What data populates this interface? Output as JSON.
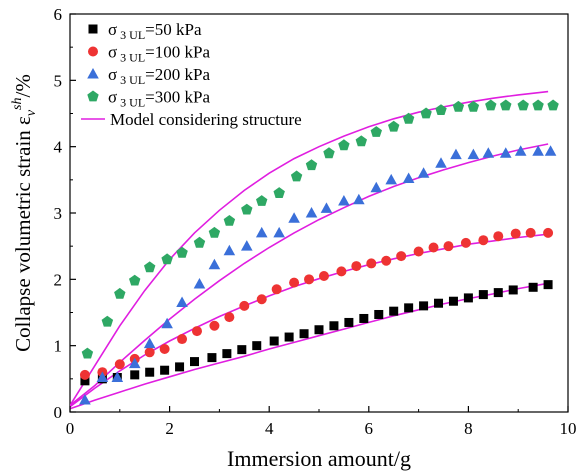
{
  "chart_data": {
    "type": "scatter",
    "title": "",
    "xlabel": "Immersion amount/g",
    "ylabel_main": "Collapse volumetric strain ε",
    "ylabel_sub": "v",
    "ylabel_sup": "sh",
    "ylabel_unit": "/%",
    "xlim": [
      0,
      10
    ],
    "ylim": [
      0,
      6
    ],
    "x_ticks": [
      "0",
      "2",
      "4",
      "6",
      "8",
      "10"
    ],
    "y_ticks": [
      "0",
      "1",
      "2",
      "3",
      "4",
      "5",
      "6"
    ],
    "grid": false,
    "legend_position": "top-left",
    "series": [
      {
        "legend": {
          "sym": "σ",
          "sub": "3 UL",
          "rest": "=50 kPa"
        },
        "marker": "square",
        "color": "#000000",
        "x": [
          0.3,
          0.65,
          0.95,
          1.3,
          1.6,
          1.9,
          2.2,
          2.5,
          2.85,
          3.15,
          3.45,
          3.75,
          4.1,
          4.4,
          4.7,
          5.0,
          5.3,
          5.6,
          5.9,
          6.2,
          6.5,
          6.8,
          7.1,
          7.4,
          7.7,
          8.0,
          8.3,
          8.6,
          8.9,
          9.3,
          9.6
        ],
        "y": [
          0.47,
          0.5,
          0.52,
          0.56,
          0.6,
          0.63,
          0.68,
          0.76,
          0.82,
          0.88,
          0.94,
          1.0,
          1.07,
          1.13,
          1.18,
          1.24,
          1.3,
          1.35,
          1.41,
          1.47,
          1.52,
          1.57,
          1.6,
          1.64,
          1.67,
          1.72,
          1.77,
          1.8,
          1.84,
          1.88,
          1.92
        ]
      },
      {
        "legend": {
          "sym": "σ",
          "sub": "3 UL",
          "rest": "=100 kPa"
        },
        "marker": "circle",
        "color": "#ee3333",
        "x": [
          0.3,
          0.65,
          1.0,
          1.3,
          1.6,
          1.9,
          2.25,
          2.55,
          2.9,
          3.2,
          3.5,
          3.85,
          4.15,
          4.5,
          4.8,
          5.1,
          5.45,
          5.75,
          6.05,
          6.35,
          6.65,
          7.0,
          7.3,
          7.6,
          7.95,
          8.3,
          8.6,
          8.95,
          9.25,
          9.6
        ],
        "y": [
          0.56,
          0.6,
          0.72,
          0.8,
          0.9,
          0.95,
          1.1,
          1.22,
          1.3,
          1.43,
          1.6,
          1.7,
          1.85,
          1.95,
          2.0,
          2.05,
          2.12,
          2.2,
          2.24,
          2.28,
          2.35,
          2.42,
          2.48,
          2.5,
          2.55,
          2.59,
          2.65,
          2.69,
          2.7,
          2.7
        ]
      },
      {
        "legend": {
          "sym": "σ",
          "sub": "3 UL",
          "rest": "=200 kPa"
        },
        "marker": "triangle",
        "color": "#3a6fd9",
        "x": [
          0.3,
          0.65,
          0.95,
          1.3,
          1.6,
          1.95,
          2.25,
          2.6,
          2.9,
          3.2,
          3.55,
          3.85,
          4.2,
          4.5,
          4.85,
          5.15,
          5.5,
          5.8,
          6.15,
          6.45,
          6.8,
          7.1,
          7.45,
          7.75,
          8.1,
          8.4,
          8.75,
          9.05,
          9.4,
          9.65
        ],
        "y": [
          0.18,
          0.52,
          0.52,
          0.73,
          1.03,
          1.33,
          1.65,
          1.93,
          2.22,
          2.43,
          2.5,
          2.7,
          2.7,
          2.92,
          3.0,
          3.07,
          3.18,
          3.2,
          3.38,
          3.5,
          3.52,
          3.6,
          3.75,
          3.88,
          3.88,
          3.9,
          3.9,
          3.93,
          3.93,
          3.93
        ]
      },
      {
        "legend": {
          "sym": "σ",
          "sub": "3 UL",
          "rest": "=300 kPa"
        },
        "marker": "pentagon",
        "color": "#2ea864",
        "x": [
          0.35,
          0.75,
          1.0,
          1.3,
          1.6,
          1.95,
          2.25,
          2.6,
          2.9,
          3.2,
          3.55,
          3.85,
          4.2,
          4.55,
          4.85,
          5.2,
          5.5,
          5.85,
          6.15,
          6.5,
          6.8,
          7.15,
          7.45,
          7.8,
          8.1,
          8.45,
          8.75,
          9.1,
          9.4,
          9.7
        ],
        "y": [
          0.88,
          1.36,
          1.78,
          1.98,
          2.18,
          2.3,
          2.4,
          2.55,
          2.7,
          2.88,
          3.05,
          3.18,
          3.3,
          3.55,
          3.72,
          3.9,
          4.02,
          4.08,
          4.22,
          4.3,
          4.42,
          4.5,
          4.55,
          4.6,
          4.6,
          4.62,
          4.62,
          4.62,
          4.62,
          4.62
        ]
      }
    ],
    "model": {
      "legend": "Model considering structure",
      "color": "#e01ee0",
      "curves": [
        {
          "x": [
            0,
            0.5,
            1,
            1.5,
            2,
            2.5,
            3,
            3.5,
            4,
            4.5,
            5,
            5.5,
            6,
            6.5,
            7,
            7.5,
            8,
            8.5,
            9,
            9.6
          ],
          "y": [
            0.05,
            0.18,
            0.3,
            0.42,
            0.53,
            0.64,
            0.74,
            0.84,
            0.95,
            1.05,
            1.15,
            1.25,
            1.35,
            1.45,
            1.54,
            1.63,
            1.71,
            1.78,
            1.86,
            1.94
          ]
        },
        {
          "x": [
            0,
            0.5,
            1,
            1.5,
            2,
            2.5,
            3,
            3.5,
            4,
            4.5,
            5,
            5.5,
            6,
            6.5,
            7,
            7.5,
            8,
            8.5,
            9,
            9.6
          ],
          "y": [
            0.08,
            0.36,
            0.62,
            0.86,
            1.07,
            1.26,
            1.44,
            1.6,
            1.75,
            1.89,
            2.01,
            2.12,
            2.22,
            2.31,
            2.39,
            2.46,
            2.53,
            2.58,
            2.63,
            2.68
          ]
        },
        {
          "x": [
            0,
            0.5,
            1,
            1.5,
            2,
            2.5,
            3,
            3.5,
            4,
            4.5,
            5,
            5.5,
            6,
            6.5,
            7,
            7.5,
            8,
            8.5,
            9,
            9.6
          ],
          "y": [
            0.1,
            0.4,
            0.75,
            1.08,
            1.4,
            1.7,
            1.98,
            2.24,
            2.48,
            2.7,
            2.9,
            3.08,
            3.25,
            3.4,
            3.53,
            3.65,
            3.76,
            3.86,
            3.95,
            4.04
          ]
        },
        {
          "x": [
            0,
            0.5,
            1,
            1.5,
            2,
            2.5,
            3,
            3.5,
            4,
            4.5,
            5,
            5.5,
            6,
            6.5,
            7,
            7.5,
            8,
            8.5,
            9,
            9.6
          ],
          "y": [
            0.1,
            0.7,
            1.3,
            1.83,
            2.3,
            2.7,
            3.04,
            3.34,
            3.6,
            3.82,
            4.0,
            4.16,
            4.3,
            4.42,
            4.52,
            4.6,
            4.67,
            4.73,
            4.78,
            4.83
          ]
        }
      ]
    }
  }
}
